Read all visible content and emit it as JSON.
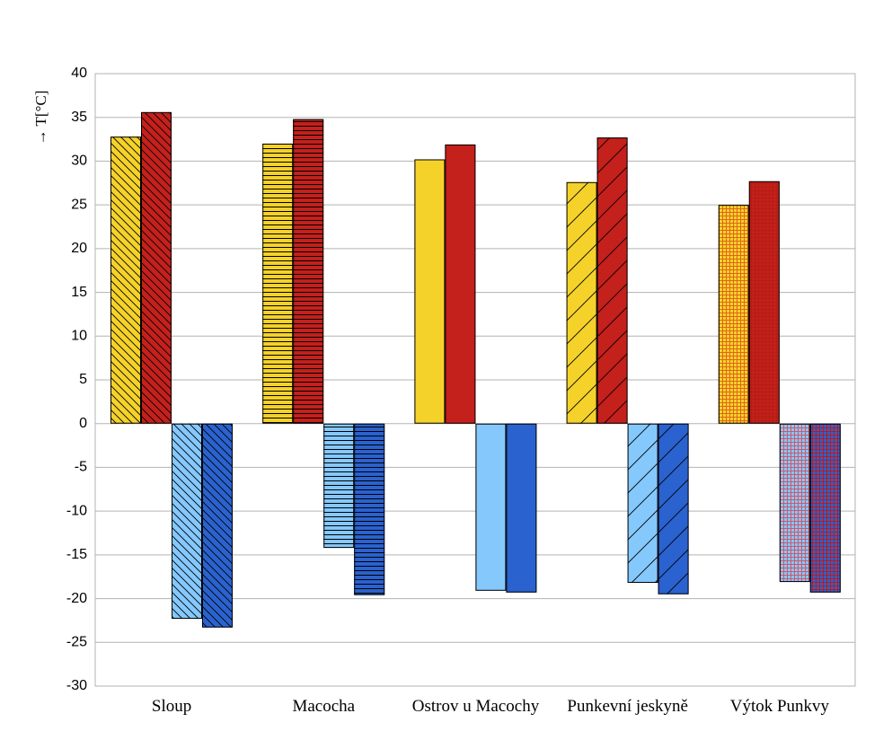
{
  "chart_data": {
    "type": "bar",
    "ylabel": "→ T[°C]",
    "ylim": [
      -30,
      40
    ],
    "ytick_step": 5,
    "grid": true,
    "categories": [
      "Sloup",
      "Macocha",
      "Ostrov u Macochy",
      "Punkevní jeskyně",
      "Výtok Punkvy"
    ],
    "patterns": [
      "diag-back",
      "horizontal",
      "none",
      "diag-fwd",
      "grid"
    ],
    "series": [
      {
        "color": "#f5d22a",
        "values": [
          32.8,
          32.0,
          30.2,
          27.6,
          25.0
        ]
      },
      {
        "color": "#c4201c",
        "values": [
          35.6,
          34.8,
          31.9,
          32.7,
          27.7
        ]
      },
      {
        "color": "#85c8fc",
        "values": [
          -22.3,
          -14.2,
          -19.1,
          -18.2,
          -18.1
        ]
      },
      {
        "color": "#2a62cf",
        "values": [
          -23.3,
          -19.6,
          -19.3,
          -19.5,
          -19.3
        ]
      }
    ]
  }
}
